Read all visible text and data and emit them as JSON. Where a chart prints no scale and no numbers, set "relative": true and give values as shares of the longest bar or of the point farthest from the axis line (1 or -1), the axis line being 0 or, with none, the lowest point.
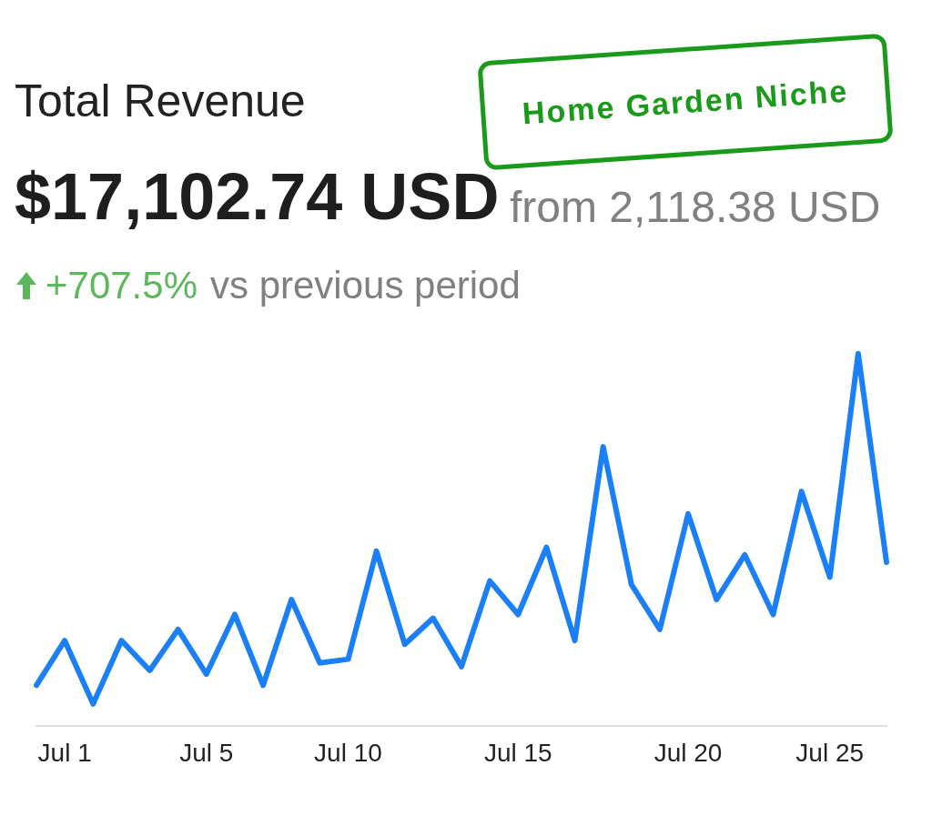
{
  "chart_data": {
    "type": "line",
    "title": "Total Revenue",
    "subtitle": "$17,102.74 USD",
    "annotations": [
      "from 2,118.38 USD",
      "+707.5%",
      "vs previous period",
      "Home Garden Niche"
    ],
    "relative": true,
    "marker": "none",
    "categories": [
      null,
      "Jul 1",
      null,
      null,
      null,
      null,
      "Jul 5",
      null,
      null,
      null,
      null,
      "Jul 10",
      null,
      null,
      null,
      null,
      null,
      "Jul 15",
      null,
      null,
      null,
      null,
      null,
      "Jul 20",
      null,
      null,
      null,
      null,
      "Jul 25",
      null,
      null
    ],
    "series": [
      {
        "color": "#1b80f7",
        "values": [
          0.11,
          0.23,
          0.06,
          0.23,
          0.15,
          0.26,
          0.14,
          0.3,
          0.11,
          0.34,
          0.17,
          0.18,
          0.47,
          0.22,
          0.29,
          0.16,
          0.39,
          0.3,
          0.48,
          0.23,
          0.75,
          0.38,
          0.26,
          0.57,
          0.34,
          0.46,
          0.3,
          0.63,
          0.4,
          1,
          0.44
        ]
      }
    ]
  }
}
